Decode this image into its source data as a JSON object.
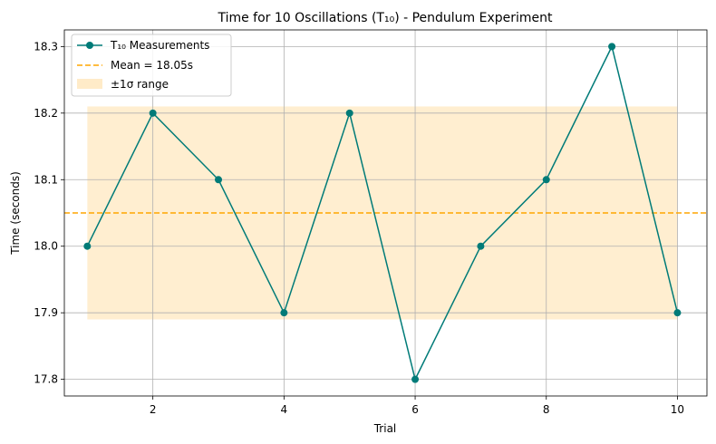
{
  "chart_data": {
    "type": "line",
    "title": "Time for 10 Oscillations (T₁₀) - Pendulum Experiment",
    "xlabel": "Trial",
    "ylabel": "Time (seconds)",
    "xlim": [
      0.65,
      10.45
    ],
    "ylim": [
      17.775,
      18.325
    ],
    "xticks": [
      2,
      4,
      6,
      8,
      10
    ],
    "yticks": [
      17.8,
      17.9,
      18.0,
      18.1,
      18.2,
      18.3
    ],
    "ytick_labels": [
      "17.8",
      "17.9",
      "18.0",
      "18.1",
      "18.2",
      "18.3"
    ],
    "grid": true,
    "legend_position": "top-left",
    "series": [
      {
        "name": "T₁₀ Measurements",
        "color": "#007b78",
        "marker": "circle",
        "x": [
          1,
          2,
          3,
          4,
          5,
          6,
          7,
          8,
          9,
          10
        ],
        "values": [
          18.0,
          18.2,
          18.1,
          17.9,
          18.2,
          17.8,
          18.0,
          18.1,
          18.3,
          17.9
        ]
      }
    ],
    "mean_line": {
      "label": "Mean = 18.05s",
      "value": 18.05,
      "color": "#ffa500",
      "style": "dashed"
    },
    "band": {
      "label": "±1σ range",
      "low": 17.89,
      "high": 18.21,
      "x_range": [
        1,
        10
      ],
      "color": "#ffebc8"
    }
  }
}
